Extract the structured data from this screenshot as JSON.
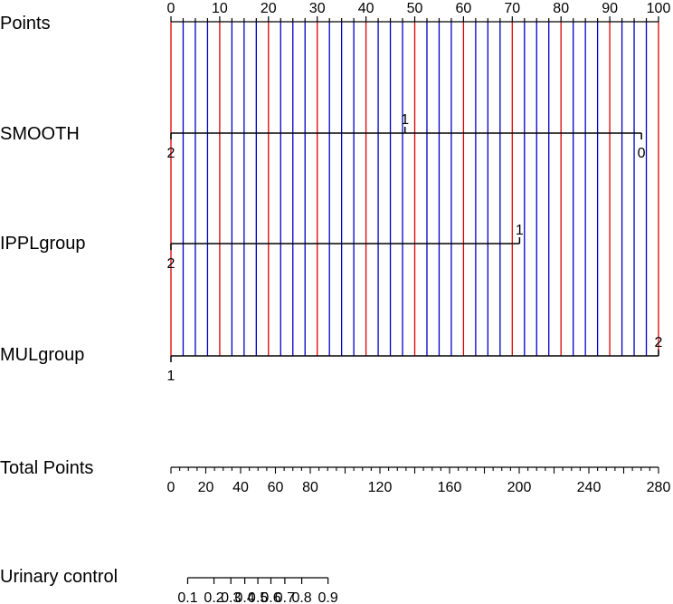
{
  "chart_data": {
    "type": "nomogram",
    "points_axis": {
      "label": "Points",
      "min": 0,
      "max": 100,
      "major_ticks": [
        0,
        10,
        20,
        30,
        40,
        50,
        60,
        70,
        80,
        90,
        100
      ],
      "minor_step": 2.5,
      "reference_line_colors": {
        "major": "#e00000",
        "minor": "#0000c8"
      }
    },
    "variables": [
      {
        "name": "SMOOTH",
        "levels": [
          {
            "label": "2",
            "points": 0,
            "side": "below"
          },
          {
            "label": "1",
            "points": 48,
            "side": "above"
          },
          {
            "label": "0",
            "points": 96.5,
            "side": "below"
          }
        ]
      },
      {
        "name": "IPPLgroup",
        "levels": [
          {
            "label": "2",
            "points": 0,
            "side": "below"
          },
          {
            "label": "1",
            "points": 71.5,
            "side": "above"
          }
        ]
      },
      {
        "name": "MULgroup",
        "levels": [
          {
            "label": "1",
            "points": 0,
            "side": "below"
          },
          {
            "label": "2",
            "points": 100,
            "side": "above"
          }
        ]
      }
    ],
    "total_points_axis": {
      "label": "Total Points",
      "min": 0,
      "max": 280,
      "tick_labels": [
        0,
        20,
        40,
        60,
        80,
        120,
        160,
        200,
        240,
        280
      ],
      "minor_step": 5
    },
    "outcome_axis": {
      "label": "Urinary control",
      "tick_labels": [
        "0.1",
        "0.2",
        "0.3",
        "0.4",
        "0.5",
        "0.6",
        "0.7",
        "0.8",
        "0.9"
      ],
      "tick_total_points": [
        9.6,
        24.7,
        34.4,
        42.4,
        49.9,
        57.4,
        65.4,
        75.1,
        90.2
      ]
    }
  }
}
